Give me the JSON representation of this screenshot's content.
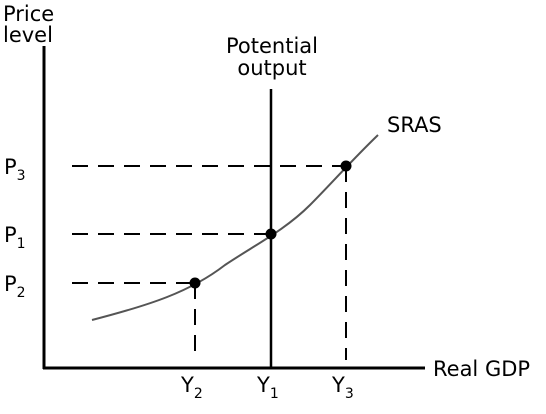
{
  "diagram": {
    "y_axis_label": [
      "Price",
      "level"
    ],
    "x_axis_label": "Real GDP",
    "vertical_line_label": [
      "Potential",
      "output"
    ],
    "curve_label": "SRAS",
    "price_levels": [
      {
        "letter": "P",
        "sub": "3"
      },
      {
        "letter": "P",
        "sub": "1"
      },
      {
        "letter": "P",
        "sub": "2"
      }
    ],
    "output_levels": [
      {
        "letter": "Y",
        "sub": "2"
      },
      {
        "letter": "Y",
        "sub": "1"
      },
      {
        "letter": "Y",
        "sub": "3"
      }
    ],
    "points": [
      {
        "name": "Y2-P2",
        "output": "Y2",
        "price": "P2"
      },
      {
        "name": "Y1-P1",
        "output": "Y1",
        "price": "P1"
      },
      {
        "name": "Y3-P3",
        "output": "Y3",
        "price": "P3"
      }
    ],
    "line_color": "#000000",
    "curve_color": "#555555"
  }
}
